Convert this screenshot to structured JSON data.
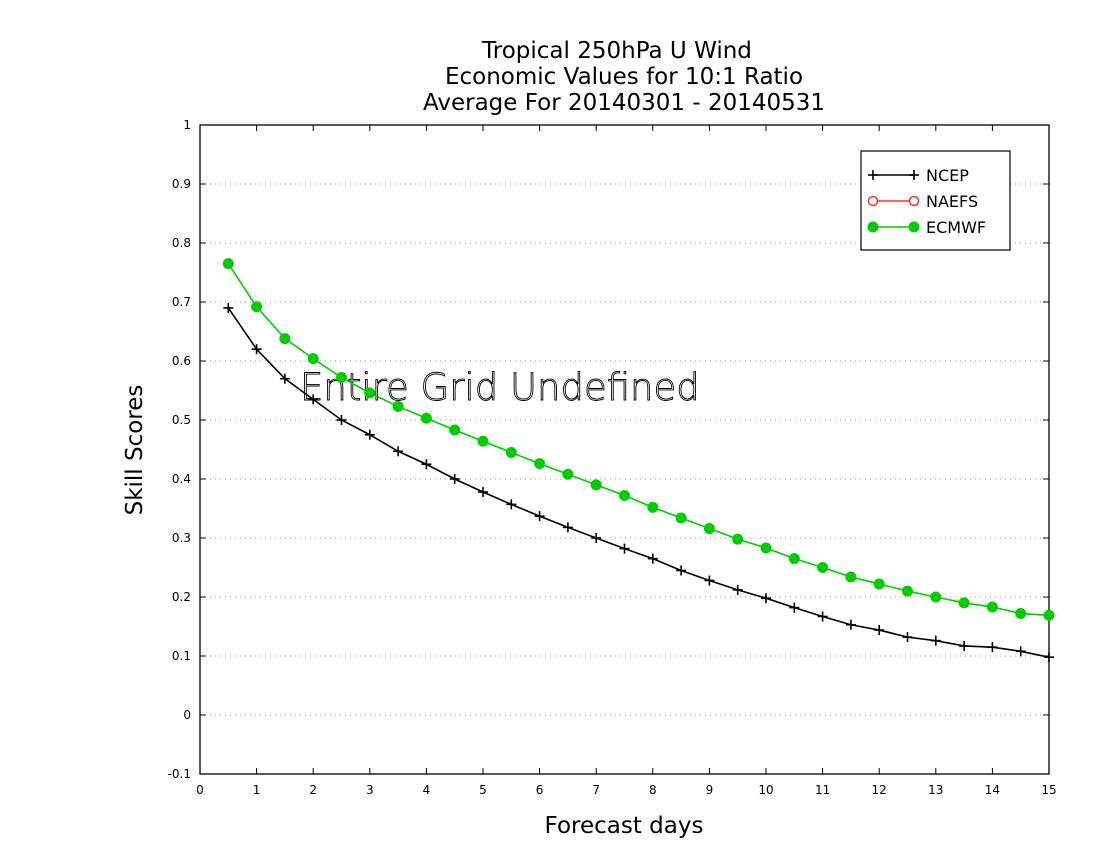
{
  "chart_data": {
    "type": "line",
    "title": [
      "Tropical 250hPa U Wind",
      "Economic Values for 10:1 Ratio",
      "Average For 20140301 - 20140531"
    ],
    "xlabel": "Forecast days",
    "ylabel": "Skill Scores",
    "xlim": [
      0,
      15
    ],
    "ylim": [
      -0.1,
      1
    ],
    "x_ticks": [
      "0",
      "1",
      "2",
      "3",
      "4",
      "5",
      "6",
      "7",
      "8",
      "9",
      "10",
      "11",
      "12",
      "13",
      "14",
      "15"
    ],
    "y_ticks": [
      "-0.1",
      "0",
      "0.1",
      "0.2",
      "0.3",
      "0.4",
      "0.5",
      "0.6",
      "0.7",
      "0.8",
      "0.9",
      "1"
    ],
    "grid": "horizontal dotted",
    "legend_position": "top-right",
    "annotation": "Entire Grid Undefined",
    "series": [
      {
        "name": "NCEP",
        "color": "#000000",
        "marker": "plus",
        "x": [
          0.5,
          1,
          1.5,
          2,
          2.5,
          3,
          3.5,
          4,
          4.5,
          5,
          5.5,
          6,
          6.5,
          7,
          7.5,
          8,
          8.5,
          9,
          9.5,
          10,
          10.5,
          11,
          11.5,
          12,
          12.5,
          13,
          13.5,
          14,
          14.5,
          15
        ],
        "values": [
          0.69,
          0.62,
          0.57,
          0.535,
          0.5,
          0.475,
          0.447,
          0.425,
          0.4,
          0.378,
          0.357,
          0.337,
          0.318,
          0.3,
          0.282,
          0.265,
          0.245,
          0.228,
          0.212,
          0.198,
          0.182,
          0.167,
          0.153,
          0.144,
          0.132,
          0.126,
          0.117,
          0.115,
          0.108,
          0.098
        ]
      },
      {
        "name": "NAEFS",
        "color": "#ff3030",
        "marker": "open-circle",
        "x": [],
        "values": []
      },
      {
        "name": "ECMWF",
        "color": "#00cc00",
        "marker": "filled-circle",
        "x": [
          0.5,
          1,
          1.5,
          2,
          2.5,
          3,
          3.5,
          4,
          4.5,
          5,
          5.5,
          6,
          6.5,
          7,
          7.5,
          8,
          8.5,
          9,
          9.5,
          10,
          10.5,
          11,
          11.5,
          12,
          12.5,
          13,
          13.5,
          14,
          14.5,
          15
        ],
        "values": [
          0.765,
          0.692,
          0.638,
          0.604,
          0.572,
          0.546,
          0.523,
          0.503,
          0.483,
          0.464,
          0.445,
          0.426,
          0.408,
          0.39,
          0.372,
          0.352,
          0.334,
          0.316,
          0.298,
          0.283,
          0.265,
          0.25,
          0.234,
          0.222,
          0.21,
          0.2,
          0.19,
          0.183,
          0.172,
          0.169
        ]
      }
    ]
  }
}
